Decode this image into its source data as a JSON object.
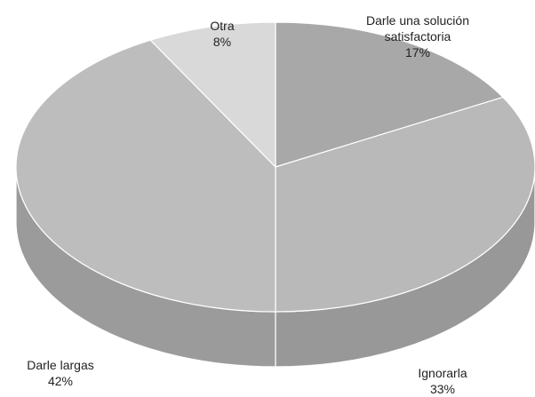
{
  "chart_data": {
    "type": "pie",
    "categories": [
      "Darle una solución satisfactoria",
      "Ignorarla",
      "Darle largas",
      "Otra"
    ],
    "values": [
      17,
      33,
      42,
      8
    ],
    "value_labels": [
      "17%",
      "33%",
      "42%",
      "8%"
    ],
    "colors": [
      "#a8a8a8",
      "#b9b9b9",
      "#bdbdbd",
      "#d9d9d9"
    ]
  }
}
